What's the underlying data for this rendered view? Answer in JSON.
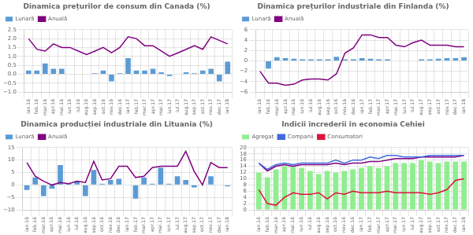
{
  "chart_data": [
    {
      "type": "bar",
      "title": "Dinamica prețurilor de consum din Canada (%)",
      "categories": [
        "ian.16",
        "feb.16",
        "mar.16",
        "apr.16",
        "mai.16",
        "iun.16",
        "iul.16",
        "aug.16",
        "sep.16",
        "oct.16",
        "nov.16",
        "dec.16",
        "ian.17",
        "feb.17",
        "mar.17",
        "apr.17",
        "mai.17",
        "iun.17",
        "iul.17",
        "aug.17",
        "sep.17",
        "oct.17",
        "nov.17",
        "dec.17",
        "ian.18"
      ],
      "series": [
        {
          "name": "Lunară",
          "type": "bar",
          "color": "#5B9BD5",
          "values": [
            0.2,
            0.2,
            0.6,
            0.3,
            0.3,
            0.0,
            0.0,
            0.0,
            0.05,
            0.2,
            -0.4,
            0.05,
            0.9,
            0.2,
            0.2,
            0.3,
            0.1,
            -0.1,
            0.0,
            0.1,
            0.05,
            0.2,
            0.3,
            -0.4,
            0.7
          ]
        },
        {
          "name": "Anuală",
          "type": "line",
          "color": "#800080",
          "values": [
            2.0,
            1.4,
            1.3,
            1.7,
            1.5,
            1.5,
            1.3,
            1.1,
            1.3,
            1.5,
            1.2,
            1.5,
            2.1,
            2.0,
            1.6,
            1.6,
            1.3,
            1.0,
            1.2,
            1.4,
            1.6,
            1.4,
            2.1,
            1.9,
            1.7
          ]
        }
      ],
      "ylim": [
        -1,
        2.5
      ],
      "yticks": [
        {
          "value": -1,
          "label": "−1.0"
        },
        {
          "value": -0.5,
          "label": "−0.5"
        },
        {
          "value": 0,
          "label": "0.0"
        },
        0.5,
        {
          "value": 1,
          "label": "1.0"
        },
        1.5,
        {
          "value": 2,
          "label": "2.0"
        },
        2.5
      ],
      "grid": true,
      "legend": "upper left"
    },
    {
      "type": "bar",
      "title": "Dinamica prețurilor industriale din Finlanda (%)",
      "categories": [
        "ian.16",
        "feb.16",
        "mar.16",
        "apr.16",
        "mai.16",
        "iun.16",
        "iul.16",
        "aug.16",
        "sep.16",
        "oct.16",
        "nov.16",
        "dec.16",
        "ian.17",
        "feb.17",
        "mar.17",
        "apr.17",
        "mai.17",
        "iun.17",
        "iul.17",
        "aug.17",
        "sep.17",
        "oct.17",
        "nov.17",
        "dec.17",
        "ian.18"
      ],
      "series": [
        {
          "name": "Lunară",
          "type": "bar",
          "color": "#5B9BD5",
          "values": [
            0.0,
            -1.5,
            0.7,
            0.5,
            0.4,
            0.3,
            0.3,
            0.3,
            0.3,
            0.8,
            0.3,
            0.3,
            0.5,
            0.4,
            0.3,
            0.3,
            0.0,
            -0.1,
            0.0,
            0.3,
            0.3,
            0.4,
            0.5,
            0.5,
            0.7
          ]
        },
        {
          "name": "Anuală",
          "type": "line",
          "color": "#800080",
          "values": [
            -2.0,
            -4.3,
            -4.3,
            -4.7,
            -4.5,
            -3.7,
            -3.5,
            -3.5,
            -3.7,
            -2.5,
            1.5,
            2.5,
            5.0,
            5.0,
            4.5,
            4.5,
            3.0,
            2.7,
            3.5,
            4.0,
            3.0,
            3.0,
            3.0,
            2.7,
            2.7
          ]
        }
      ],
      "ylim": [
        -6,
        6
      ],
      "yticks": [
        {
          "value": -6,
          "label": "−6"
        },
        {
          "value": -4,
          "label": "−4"
        },
        {
          "value": -2,
          "label": "−2"
        },
        0,
        2,
        4,
        6
      ],
      "grid": true,
      "legend": "upper left"
    },
    {
      "type": "bar",
      "title": "Dinamica producției industriale din Lituania (%)",
      "categories": [
        "ian.16",
        "feb.16",
        "mar.16",
        "apr.16",
        "mai.16",
        "iun.16",
        "iul.16",
        "aug.16",
        "sep.16",
        "oct.16",
        "nov.16",
        "dec.16",
        "ian.17",
        "feb.17",
        "mar.17",
        "apr.17",
        "mai.17",
        "iun.17",
        "iul.17",
        "aug.17",
        "sep.17",
        "oct.17",
        "nov.17",
        "dec.17",
        "ian.18"
      ],
      "series": [
        {
          "name": "Lunară",
          "type": "bar",
          "color": "#5B9BD5",
          "values": [
            -2.0,
            3.0,
            -4.5,
            -1.5,
            8.0,
            0.5,
            1.5,
            -4.5,
            6.0,
            0.5,
            2.0,
            2.5,
            0.0,
            -5.5,
            3.0,
            0.5,
            7.0,
            0.5,
            3.5,
            2.0,
            -1.0,
            0.0,
            3.5,
            0.0,
            -0.5
          ]
        },
        {
          "name": "Anuală",
          "type": "line",
          "color": "#800080",
          "values": [
            9.0,
            3.5,
            1.5,
            0.0,
            1.0,
            0.5,
            1.5,
            1.0,
            9.5,
            2.0,
            2.5,
            7.5,
            7.5,
            3.0,
            3.5,
            7.0,
            7.5,
            7.5,
            7.5,
            13.5,
            5.5,
            0.0,
            9.0,
            7.0,
            7.0
          ]
        }
      ],
      "ylim": [
        -10,
        15
      ],
      "yticks": [
        {
          "value": -10,
          "label": "−10"
        },
        {
          "value": -5,
          "label": "−5"
        },
        0,
        5,
        10,
        15
      ],
      "grid": true,
      "legend": "upper left"
    },
    {
      "type": "bar",
      "title": "Indicii încrederii în economia Cehiei",
      "categories": [
        "ian.16",
        "feb.16",
        "mar.16",
        "apr.16",
        "mai.16",
        "iun.16",
        "iul.16",
        "aug.16",
        "sep.16",
        "oct.16",
        "nov.16",
        "dec.16",
        "ian.17",
        "feb.17",
        "mar.17",
        "apr.17",
        "mai.17",
        "iun.17",
        "iul.17",
        "aug.17",
        "sep.17",
        "oct.17",
        "nov.17",
        "dec.17",
        "ian.18"
      ],
      "series": [
        {
          "name": "Agregat",
          "type": "bar",
          "color": "#90EE90",
          "values": [
            12.0,
            10.5,
            13.0,
            14.0,
            14.0,
            13.5,
            12.5,
            11.5,
            12.5,
            12.0,
            12.5,
            13.0,
            13.5,
            14.0,
            13.5,
            14.0,
            15.0,
            15.0,
            15.0,
            16.0,
            15.5,
            15.0,
            15.5,
            15.5,
            15.5
          ]
        },
        {
          "name": "Companii",
          "type": "line",
          "color": "#4169E1",
          "values": [
            15.0,
            13.0,
            14.5,
            15.0,
            14.5,
            15.0,
            15.0,
            15.0,
            15.0,
            16.0,
            15.0,
            16.0,
            16.0,
            17.0,
            16.5,
            17.5,
            17.5,
            17.0,
            17.0,
            17.0,
            17.5,
            17.5,
            17.5,
            17.5,
            17.5
          ]
        },
        {
          "type": "line",
          "color": "#800080",
          "values": [
            15.0,
            12.5,
            14.0,
            14.5,
            14.0,
            14.5,
            14.5,
            14.5,
            14.5,
            15.0,
            14.5,
            15.0,
            15.0,
            15.5,
            15.5,
            16.0,
            16.5,
            16.5,
            16.5,
            17.0,
            17.0,
            17.0,
            17.0,
            17.0,
            17.5
          ]
        },
        {
          "name": "Consumatori",
          "type": "line",
          "color": "#DC143C",
          "values": [
            6.5,
            2.0,
            1.5,
            4.0,
            5.5,
            5.0,
            5.0,
            5.5,
            3.5,
            5.5,
            5.0,
            6.0,
            5.5,
            5.5,
            5.5,
            6.0,
            5.5,
            5.5,
            5.5,
            5.5,
            5.0,
            5.5,
            6.5,
            9.5,
            10.0
          ]
        }
      ],
      "ylim": [
        0,
        20
      ],
      "yticks": [
        0,
        2,
        4,
        6,
        8,
        10,
        12,
        14,
        16,
        18,
        20
      ],
      "grid": true,
      "legend": "upper left"
    }
  ]
}
